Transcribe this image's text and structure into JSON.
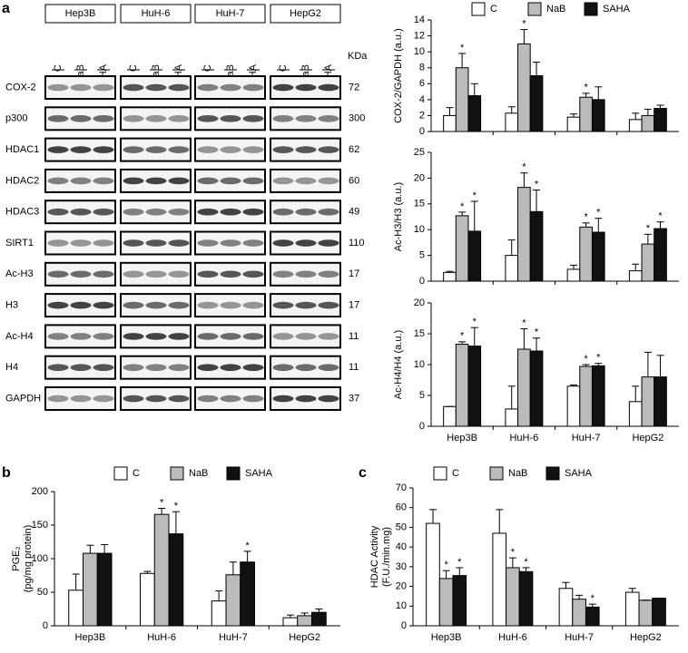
{
  "panel_labels": [
    "a",
    "b",
    "c"
  ],
  "blot": {
    "cell_lines": [
      "Hep3B",
      "HuH-6",
      "HuH-7",
      "HepG2"
    ],
    "lanes": [
      "C",
      "NaB",
      "SAHA"
    ],
    "unit": "KDa",
    "rows": [
      {
        "protein": "COX-2",
        "kda": 72
      },
      {
        "protein": "p300",
        "kda": 300
      },
      {
        "protein": "HDAC1",
        "kda": 62
      },
      {
        "protein": "HDAC2",
        "kda": 60
      },
      {
        "protein": "HDAC3",
        "kda": 49
      },
      {
        "protein": "SIRT1",
        "kda": 110
      },
      {
        "protein": "Ac-H3",
        "kda": 17
      },
      {
        "protein": "H3",
        "kda": 17
      },
      {
        "protein": "Ac-H4",
        "kda": 11
      },
      {
        "protein": "H4",
        "kda": 11
      },
      {
        "protein": "GAPDH",
        "kda": 37
      }
    ]
  },
  "chart_data": [
    {
      "type": "bar",
      "ylabel": [
        "COX-2/GAPDH (a.u.)"
      ],
      "legend": true,
      "categories": [
        null,
        null,
        null,
        null
      ],
      "ylim": [
        0,
        14
      ],
      "yticks": [
        0,
        2,
        4,
        6,
        8,
        10,
        12,
        14
      ],
      "series": [
        {
          "name": "C",
          "color": "#ffffff",
          "values": [
            2,
            2.3,
            1.8,
            1.5
          ],
          "errors": [
            1,
            0.8,
            0.4,
            0.8
          ],
          "stars": [
            null,
            null,
            null,
            null
          ]
        },
        {
          "name": "NaB",
          "color": "#bbbbbb",
          "values": [
            8,
            11,
            4.3,
            2
          ],
          "errors": [
            1.8,
            1.8,
            0.5,
            0.8
          ],
          "stars": [
            "*",
            "*",
            "*",
            null
          ]
        },
        {
          "name": "SAHA",
          "color": "#111111",
          "values": [
            4.5,
            7,
            4,
            2.9
          ],
          "errors": [
            1.5,
            1.7,
            1.6,
            0.4
          ],
          "stars": [
            null,
            null,
            null,
            null
          ]
        }
      ]
    },
    {
      "type": "bar",
      "ylabel": [
        "Ac-H3/H3 (a.u.)"
      ],
      "legend": false,
      "categories": [
        null,
        null,
        null,
        null
      ],
      "ylim": [
        0,
        25
      ],
      "yticks": [
        0,
        5,
        10,
        15,
        20,
        25
      ],
      "series": [
        {
          "color": "#ffffff",
          "values": [
            1.7,
            5,
            2.3,
            2
          ],
          "errors": [
            0.2,
            3,
            0.8,
            1.3
          ],
          "stars": [
            null,
            null,
            null,
            null
          ]
        },
        {
          "color": "#bbbbbb",
          "values": [
            12.7,
            18.2,
            10.5,
            7.2
          ],
          "errors": [
            0.7,
            2.8,
            0.8,
            1.9
          ],
          "stars": [
            "*",
            "*",
            "*",
            "*"
          ]
        },
        {
          "color": "#111111",
          "values": [
            9.7,
            13.5,
            9.5,
            10.2
          ],
          "errors": [
            5.8,
            4.2,
            2.7,
            1.3
          ],
          "stars": [
            "*",
            "*",
            "*",
            "*"
          ]
        }
      ]
    },
    {
      "type": "bar",
      "ylabel": [
        "Ac-H4/H4 (a.u.)"
      ],
      "legend": false,
      "categories": [
        "Hep3B",
        "HuH-6",
        "HuH-7",
        "HepG2"
      ],
      "ylim": [
        0,
        20
      ],
      "yticks": [
        0,
        5,
        10,
        15,
        20
      ],
      "series": [
        {
          "color": "#ffffff",
          "values": [
            3.2,
            2.8,
            6.5,
            4
          ],
          "errors": [
            0,
            3.7,
            0.2,
            2.5
          ],
          "stars": [
            null,
            null,
            null,
            null
          ]
        },
        {
          "color": "#bbbbbb",
          "values": [
            13.3,
            12.5,
            9.7,
            8
          ],
          "errors": [
            0.4,
            3.3,
            0.3,
            4
          ],
          "stars": [
            "*",
            "*",
            "*",
            null
          ]
        },
        {
          "color": "#111111",
          "values": [
            13,
            12.2,
            9.8,
            8
          ],
          "errors": [
            3,
            2.1,
            0.4,
            3.5
          ],
          "stars": [
            "*",
            "*",
            "*",
            null
          ]
        }
      ]
    },
    {
      "type": "bar",
      "ylabel": [
        "PGE₂",
        "(pg/mg protein)"
      ],
      "legend": true,
      "categories": [
        "Hep3B",
        "HuH-6",
        "HuH-7",
        "HepG2"
      ],
      "ylim": [
        0,
        200
      ],
      "yticks": [
        0,
        50,
        100,
        150,
        200
      ],
      "series": [
        {
          "name": "C",
          "color": "#ffffff",
          "values": [
            53,
            78,
            37,
            12
          ],
          "errors": [
            24,
            3,
            15,
            4
          ],
          "stars": [
            null,
            null,
            null,
            null
          ]
        },
        {
          "name": "NaB",
          "color": "#bbbbbb",
          "values": [
            108,
            166,
            76,
            15
          ],
          "errors": [
            12,
            9,
            19,
            4
          ],
          "stars": [
            null,
            "*",
            null,
            null
          ]
        },
        {
          "name": "SAHA",
          "color": "#111111",
          "values": [
            108,
            137,
            95,
            20
          ],
          "errors": [
            13,
            33,
            16,
            5
          ],
          "stars": [
            null,
            "*",
            "*",
            null
          ]
        }
      ]
    },
    {
      "type": "bar",
      "ylabel": [
        "HDAC Activity",
        "(F.U./min.mg)"
      ],
      "legend": true,
      "categories": [
        "Hep3B",
        "HuH-6",
        "HuH-7",
        "HepG2"
      ],
      "ylim": [
        0,
        70
      ],
      "yticks": [
        0,
        10,
        20,
        30,
        40,
        50,
        60,
        70
      ],
      "series": [
        {
          "name": "C",
          "color": "#ffffff",
          "values": [
            52,
            47,
            19,
            17
          ],
          "errors": [
            7,
            12,
            3,
            2
          ],
          "stars": [
            null,
            null,
            null,
            null
          ]
        },
        {
          "name": "NaB",
          "color": "#bbbbbb",
          "values": [
            24,
            29.5,
            13.5,
            13
          ],
          "errors": [
            4,
            5,
            2,
            0
          ],
          "stars": [
            "*",
            "*",
            null,
            null
          ]
        },
        {
          "name": "SAHA",
          "color": "#111111",
          "values": [
            25.5,
            27.5,
            9.5,
            14
          ],
          "errors": [
            4,
            2,
            1.5,
            0
          ],
          "stars": [
            "*",
            "*",
            "*",
            null
          ]
        }
      ]
    }
  ]
}
